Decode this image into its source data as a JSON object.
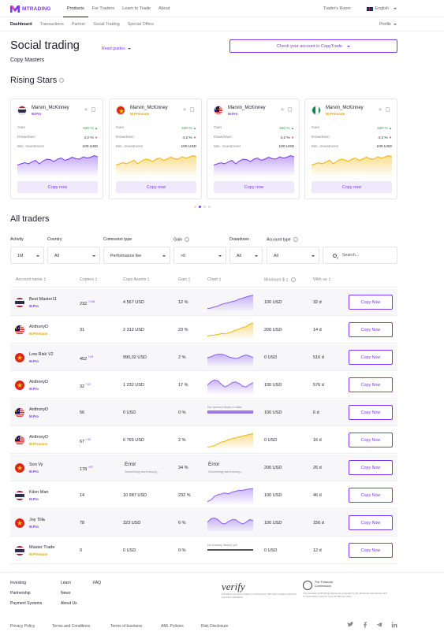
{
  "header": {
    "logo_text": "MTRADING",
    "nav": [
      "Products",
      "For Traders",
      "Learn to Trade",
      "About"
    ],
    "traders_room": "Trader's Room",
    "language": "English"
  },
  "subnav": {
    "items": [
      "Dashboard",
      "Transactions",
      "Partner",
      "Social Trading",
      "Special Offers"
    ],
    "profile": "Profile"
  },
  "page": {
    "title": "Social trading",
    "read_guides": "Read guides",
    "subtitle": "Copy Masters",
    "check_button": "Check your account in CopyTrade"
  },
  "rising_stars": {
    "heading": "Rising Stars",
    "cards": [
      {
        "name": "Marvin_McKinney",
        "tier": "M.Pro",
        "tier_color": "#7c3aed",
        "flag": "thailand",
        "gain_label": "Gain",
        "gain": "420 %",
        "drawdown_label": "Drawdown",
        "drawdown": "4,2 %",
        "min_label": "Min. Investment",
        "min": "100 USD",
        "chart_color": "#7c3aed",
        "button": "Copy now"
      },
      {
        "name": "Marvin_McKinney",
        "tier": "M.Premium",
        "tier_color": "#e5a400",
        "flag": "vietnam",
        "gain_label": "Gain",
        "gain": "420 %",
        "drawdown_label": "Drawdown",
        "drawdown": "4,2 %",
        "min_label": "Min. Investment",
        "min": "100 USD",
        "chart_color": "#f0b400",
        "button": "Copy now"
      },
      {
        "name": "Marvin_McKinney",
        "tier": "M.Pro",
        "tier_color": "#7c3aed",
        "flag": "malaysia",
        "gain_label": "Gain",
        "gain": "420 %",
        "drawdown_label": "Drawdown",
        "drawdown": "4,2 %",
        "min_label": "Min. Investment",
        "min": "100 USD",
        "chart_color": "#7c3aed",
        "button": "Copy now"
      },
      {
        "name": "Marvin_McKinney",
        "tier": "M.Premium",
        "tier_color": "#e5a400",
        "flag": "nigeria",
        "gain_label": "Gain",
        "gain": "420 %",
        "drawdown_label": "Drawdown",
        "drawdown": "4,2 %",
        "min_label": "Min. Investment",
        "min": "100 USD",
        "chart_color": "#f0b400",
        "button": "Copy now"
      }
    ]
  },
  "all_traders": {
    "heading": "All traders",
    "filters": [
      {
        "label": "Activity",
        "value": "1M"
      },
      {
        "label": "Country",
        "value": "All"
      },
      {
        "label": "Comission type",
        "value": "Performance fee"
      },
      {
        "label": "Gain",
        "value": ">0"
      },
      {
        "label": "Drawdown",
        "value": "All"
      },
      {
        "label": "Account type",
        "value": "All"
      }
    ],
    "search_placeholder": "Search...",
    "columns": [
      "Account name",
      "Copiers",
      "Copy Assets",
      "Gain",
      "Chart",
      "Minimum $",
      "With us"
    ],
    "rows": [
      {
        "name": "Best Master11",
        "tier": "M.Pro",
        "tier_color": "#7c3aed",
        "flag": "thailand",
        "copiers": "232",
        "copiers_delta": "+146",
        "assets": "4 567 USD",
        "gain": "12 %",
        "chart": "purple-up",
        "minimum": "100 USD",
        "with_us": "32 d",
        "button": "Copy Now"
      },
      {
        "name": "AnthonyD",
        "tier": "M.Premium",
        "tier_color": "#e5a400",
        "flag": "malaysia",
        "copiers": "31",
        "copiers_delta": "",
        "assets": "2 312 USD",
        "gain": "23 %",
        "chart": "yellow-up",
        "minimum": "200 USD",
        "with_us": "14 d",
        "button": "Copy Now"
      },
      {
        "name": "Low Risk V2",
        "tier": "M.Pro",
        "tier_color": "#7c3aed",
        "flag": "vietnam",
        "copiers": "452",
        "copiers_delta": "+13",
        "assets": "990,02 USD",
        "gain": "2 %",
        "chart": "purple-wave",
        "minimum": "0 USD",
        "with_us": "516 d",
        "button": "Copy Now"
      },
      {
        "name": "AnthonyD",
        "tier": "M.Pro",
        "tier_color": "#7c3aed",
        "flag": "vietnam",
        "copiers": "32",
        "copiers_delta": "+22",
        "assets": "1 232 USD",
        "gain": "17 %",
        "chart": "purple-hills",
        "minimum": "100 USD",
        "with_us": "576 d",
        "button": "Copy Now"
      },
      {
        "name": "AnthonyD",
        "tier": "M.Pro",
        "tier_color": "#7c3aed",
        "flag": "malaysia",
        "copiers": "56",
        "copiers_delta": "",
        "assets": "0 USD",
        "gain": "0 %",
        "chart_text": "No opened deals to date",
        "minimum": "100 USD",
        "with_us": "6 d",
        "button": "Copy Now"
      },
      {
        "name": "AnthonyD",
        "tier": "M.Premium",
        "tier_color": "#e5a400",
        "flag": "malaysia",
        "copiers": "67",
        "copiers_delta": "+32",
        "assets": "6 765 USD",
        "gain": "2 %",
        "chart": "yellow-step",
        "minimum": "0 USD",
        "with_us": "16 d",
        "button": "Copy Now"
      },
      {
        "name": "Son Vy",
        "tier": "M.Pro",
        "tier_color": "#7c3aed",
        "flag": "vietnam",
        "copiers": "178",
        "copiers_delta": "+67",
        "assets_error": "Error",
        "assets_error_sub": "Something went wrong...",
        "gain": "34 %",
        "chart_error": "Error",
        "chart_error_sub": "Something went wrong...",
        "minimum": "200 USD",
        "with_us": "26 d",
        "button": "Copy Now"
      },
      {
        "name": "Kilon Man",
        "tier": "M.Pro",
        "tier_color": "#7c3aed",
        "flag": "thailand",
        "copiers": "14",
        "copiers_delta": "",
        "assets": "10 987 USD",
        "gain": "232 %",
        "chart": "purple-up2",
        "minimum": "100 USD",
        "with_us": "46 d",
        "button": "Copy Now"
      },
      {
        "name": "Joy Tilla",
        "tier": "M.Pro",
        "tier_color": "#7c3aed",
        "flag": "vietnam",
        "copiers": "78",
        "copiers_delta": "",
        "assets": "323 USD",
        "gain": "6 %",
        "chart": "purple-hills2",
        "minimum": "100 USD",
        "with_us": "156 d",
        "button": "Copy Now"
      },
      {
        "name": "Master Trade",
        "tier": "M.Premium",
        "tier_color": "#e5a400",
        "flag": "thailand",
        "copiers": "0",
        "copiers_delta": "",
        "assets": "0 USD",
        "gain": "0 %",
        "chart_text": "No trading history yet",
        "chart_text_bar": "gray",
        "minimum": "0 USD",
        "with_us": "12 d",
        "button": "Copy Now"
      }
    ]
  },
  "footer": {
    "col1": [
      "Investing",
      "Partnership",
      "Payment Systems"
    ],
    "col2": [
      "Learn",
      "News",
      "About Us"
    ],
    "col3": [
      "FAQ"
    ],
    "verify_title": "verify",
    "verify_sub": "MTrading execution quality is confirmed by VMT and complies with best execution standards",
    "commission_title": "The Financial Commission",
    "commission_sub": "The interests of MTrading clients are protected by the Financial Commission and Compensation Fund for up to 20 000 per claim",
    "bottom_links": [
      "Privacy Policy",
      "Terms and Conditions",
      "Terms of business",
      "AML Policies",
      "Risk Disclosure"
    ],
    "social": [
      "twitter-icon",
      "facebook-icon",
      "telegram-icon",
      "linkedin-icon"
    ]
  }
}
